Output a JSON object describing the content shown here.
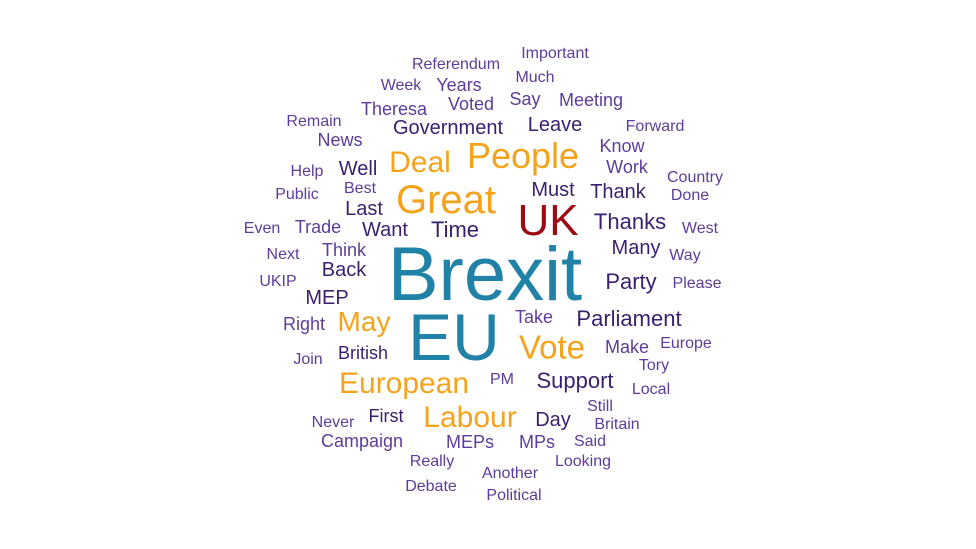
{
  "palette": {
    "dark": "#3a1f6e",
    "light": "#5e3c99",
    "orange": "#f5a31a",
    "teal": "#1f82a6",
    "red": "#9c0a12"
  },
  "words": [
    {
      "text": "Brexit",
      "color": "teal"
    },
    {
      "text": "EU",
      "color": "teal"
    },
    {
      "text": "UK",
      "color": "red"
    },
    {
      "text": "Great",
      "color": "orange"
    },
    {
      "text": "People",
      "color": "orange"
    },
    {
      "text": "Deal",
      "color": "orange"
    },
    {
      "text": "European",
      "color": "orange"
    },
    {
      "text": "Labour",
      "color": "orange"
    },
    {
      "text": "Vote",
      "color": "orange"
    },
    {
      "text": "May",
      "color": "orange"
    },
    {
      "text": "Referendum",
      "color": "light"
    },
    {
      "text": "Important",
      "color": "light"
    },
    {
      "text": "Much",
      "color": "light"
    },
    {
      "text": "Week",
      "color": "light"
    },
    {
      "text": "Years",
      "color": "light"
    },
    {
      "text": "Say",
      "color": "light"
    },
    {
      "text": "Meeting",
      "color": "light"
    },
    {
      "text": "Theresa",
      "color": "light"
    },
    {
      "text": "Voted",
      "color": "light"
    },
    {
      "text": "Remain",
      "color": "light"
    },
    {
      "text": "Leave",
      "color": "dark"
    },
    {
      "text": "Forward",
      "color": "light"
    },
    {
      "text": "News",
      "color": "light"
    },
    {
      "text": "Government",
      "color": "dark"
    },
    {
      "text": "Know",
      "color": "light"
    },
    {
      "text": "Help",
      "color": "light"
    },
    {
      "text": "Well",
      "color": "dark"
    },
    {
      "text": "Work",
      "color": "light"
    },
    {
      "text": "Country",
      "color": "light"
    },
    {
      "text": "Public",
      "color": "light"
    },
    {
      "text": "Best",
      "color": "light"
    },
    {
      "text": "Must",
      "color": "dark"
    },
    {
      "text": "Thank",
      "color": "dark"
    },
    {
      "text": "Done",
      "color": "light"
    },
    {
      "text": "Last",
      "color": "dark"
    },
    {
      "text": "Even",
      "color": "light"
    },
    {
      "text": "Trade",
      "color": "light"
    },
    {
      "text": "Want",
      "color": "dark"
    },
    {
      "text": "Time",
      "color": "dark"
    },
    {
      "text": "Thanks",
      "color": "dark"
    },
    {
      "text": "West",
      "color": "light"
    },
    {
      "text": "Think",
      "color": "light"
    },
    {
      "text": "Many",
      "color": "dark"
    },
    {
      "text": "Next",
      "color": "light"
    },
    {
      "text": "Way",
      "color": "light"
    },
    {
      "text": "Back",
      "color": "dark"
    },
    {
      "text": "UKIP",
      "color": "light"
    },
    {
      "text": "Party",
      "color": "dark"
    },
    {
      "text": "Please",
      "color": "light"
    },
    {
      "text": "MEP",
      "color": "dark"
    },
    {
      "text": "Right",
      "color": "light"
    },
    {
      "text": "Take",
      "color": "light"
    },
    {
      "text": "Parliament",
      "color": "dark"
    },
    {
      "text": "British",
      "color": "dark"
    },
    {
      "text": "Make",
      "color": "light"
    },
    {
      "text": "Europe",
      "color": "light"
    },
    {
      "text": "Join",
      "color": "light"
    },
    {
      "text": "Tory",
      "color": "light"
    },
    {
      "text": "PM",
      "color": "light"
    },
    {
      "text": "Support",
      "color": "dark"
    },
    {
      "text": "Local",
      "color": "light"
    },
    {
      "text": "Still",
      "color": "light"
    },
    {
      "text": "First",
      "color": "dark"
    },
    {
      "text": "Never",
      "color": "light"
    },
    {
      "text": "Day",
      "color": "dark"
    },
    {
      "text": "Britain",
      "color": "light"
    },
    {
      "text": "Campaign",
      "color": "light"
    },
    {
      "text": "MEPs",
      "color": "light"
    },
    {
      "text": "MPs",
      "color": "light"
    },
    {
      "text": "Said",
      "color": "light"
    },
    {
      "text": "Really",
      "color": "light"
    },
    {
      "text": "Looking",
      "color": "light"
    },
    {
      "text": "Another",
      "color": "light"
    },
    {
      "text": "Debate",
      "color": "light"
    },
    {
      "text": "Political",
      "color": "light"
    }
  ]
}
